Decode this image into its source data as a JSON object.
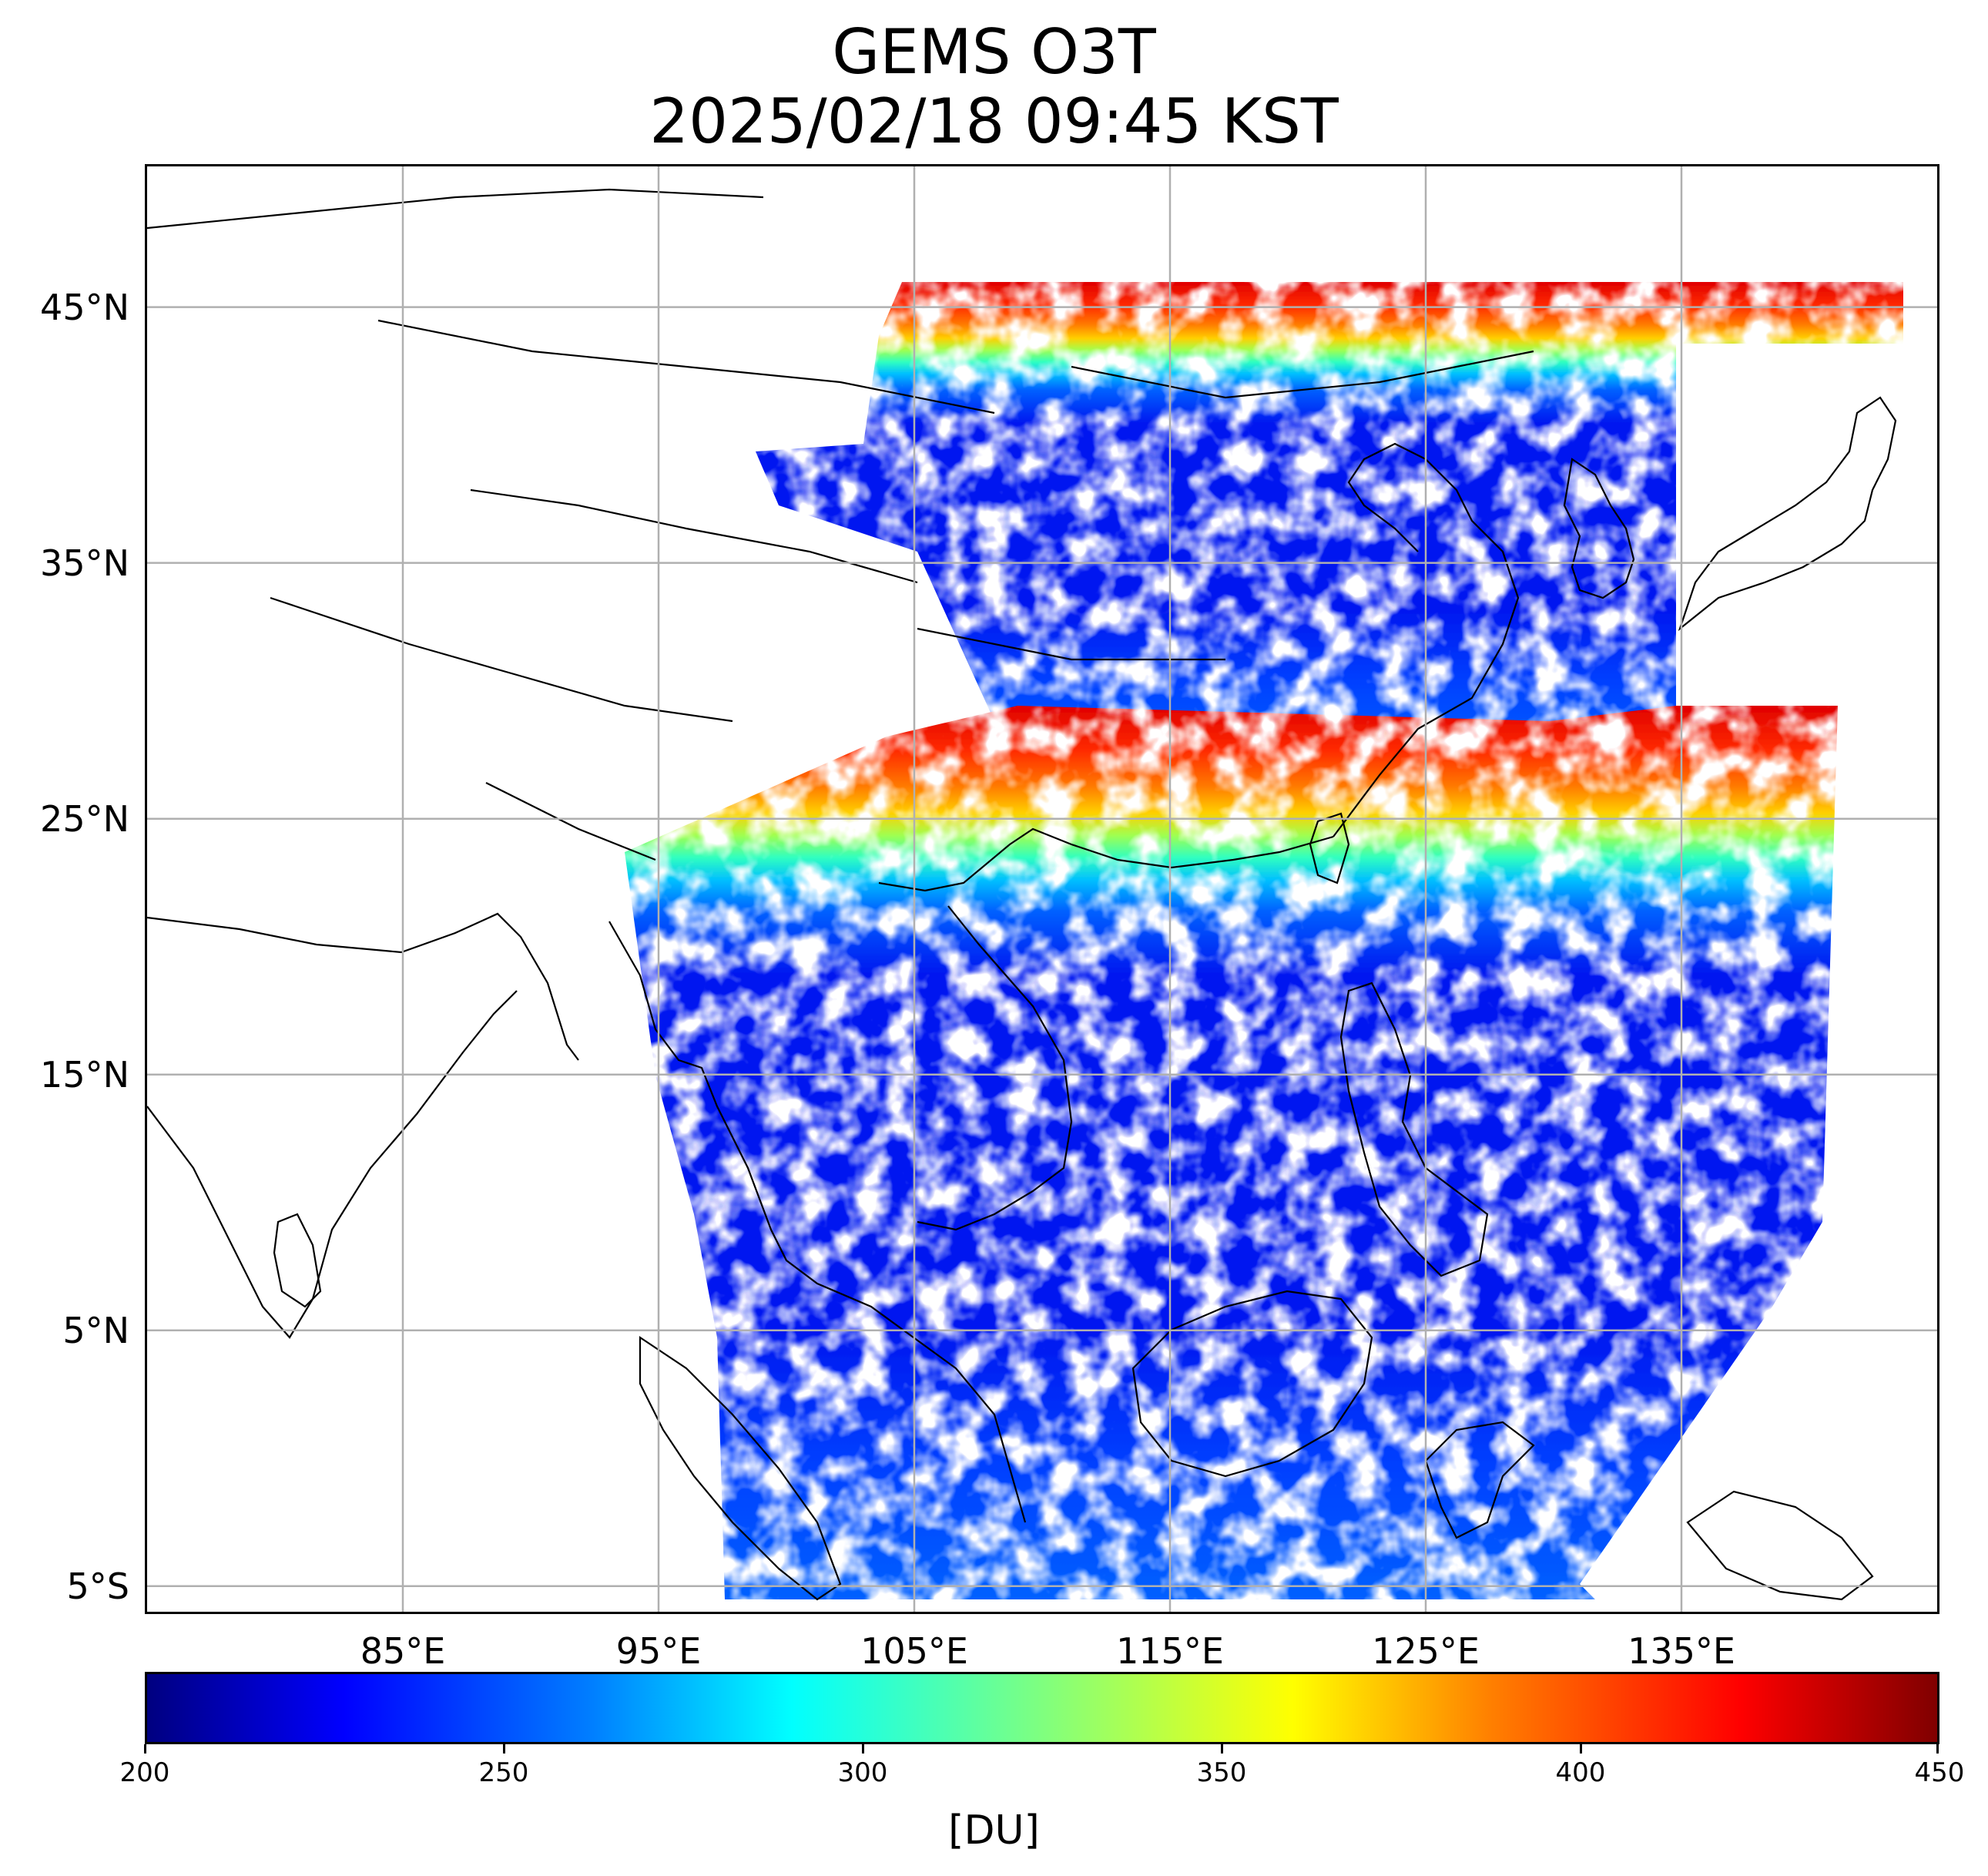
{
  "title": {
    "line1": "GEMS O3T",
    "line2": "2025/02/18 09:45 KST"
  },
  "map": {
    "type": "geo-raster",
    "lon_range": [
      75,
      145
    ],
    "lat_range": [
      -6,
      50.5
    ],
    "grid": true,
    "lat_ticks": [
      {
        "value": 45,
        "label": "45°N"
      },
      {
        "value": 35,
        "label": "35°N"
      },
      {
        "value": 25,
        "label": "25°N"
      },
      {
        "value": 15,
        "label": "15°N"
      },
      {
        "value": 5,
        "label": "5°N"
      },
      {
        "value": -5,
        "label": "5°S"
      }
    ],
    "lon_ticks": [
      {
        "value": 85,
        "label": "85°E"
      },
      {
        "value": 95,
        "label": "95°E"
      },
      {
        "value": 105,
        "label": "105°E"
      },
      {
        "value": 115,
        "label": "115°E"
      },
      {
        "value": 125,
        "label": "125°E"
      },
      {
        "value": 135,
        "label": "135°E"
      }
    ]
  },
  "colorbar": {
    "colormap": "jet",
    "vmin": 200,
    "vmax": 450,
    "tick_labels": [
      "200",
      "250",
      "300",
      "350",
      "400",
      "450"
    ],
    "unit": "[DU]"
  }
}
